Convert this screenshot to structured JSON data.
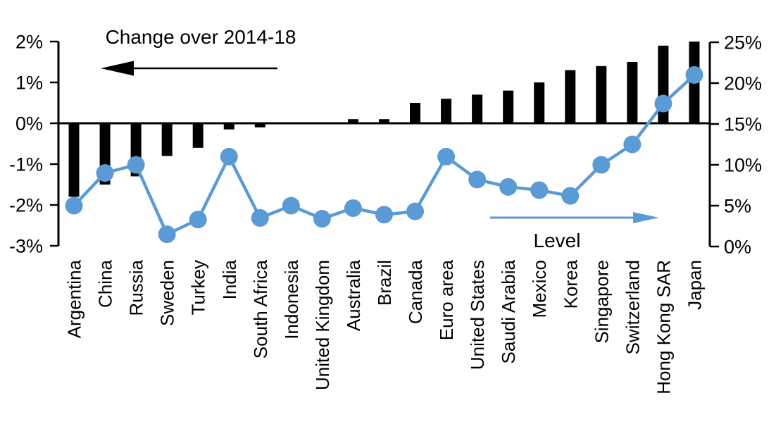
{
  "chart_data": {
    "type": "combo",
    "title": "",
    "categories": [
      "Argentina",
      "China",
      "Russia",
      "Sweden",
      "Turkey",
      "India",
      "South Africa",
      "Indonesia",
      "United Kingdom",
      "Australia",
      "Brazil",
      "Canada",
      "Euro area",
      "United States",
      "Saudi Arabia",
      "Mexico",
      "Korea",
      "Singapore",
      "Switzerland",
      "Hong Kong SAR",
      "Japan"
    ],
    "series": [
      {
        "name": "Change over 2014-18",
        "type": "bar",
        "axis": "left",
        "color": "#000000",
        "unit": "%",
        "values": [
          -1.8,
          -1.5,
          -1.3,
          -0.8,
          -0.6,
          -0.15,
          -0.1,
          0,
          0,
          0.1,
          0.1,
          0.5,
          0.6,
          0.7,
          0.8,
          1.0,
          1.3,
          1.4,
          1.5,
          1.9,
          2.0
        ]
      },
      {
        "name": "Level",
        "type": "line",
        "axis": "right",
        "color": "#5B9BD5",
        "unit": "%",
        "values": [
          5,
          9,
          10,
          1.5,
          3.3,
          11,
          3.5,
          5,
          3.4,
          4.7,
          3.9,
          4.3,
          11,
          8.2,
          7.3,
          6.9,
          6.2,
          10,
          12.5,
          17.5,
          21
        ]
      }
    ],
    "left_axis": {
      "min": -3,
      "max": 2,
      "tick_values": [
        2,
        1,
        0,
        -1,
        -2,
        -3
      ],
      "tick_labels": [
        "2%",
        "1%",
        "0%",
        "-1%",
        "-2%",
        "-3%"
      ]
    },
    "right_axis": {
      "min": 0,
      "max": 25,
      "tick_values": [
        25,
        20,
        15,
        10,
        5,
        0
      ],
      "tick_labels": [
        "25%",
        "20%",
        "15%",
        "10%",
        "5%",
        "0%"
      ]
    },
    "annotations": [
      {
        "id": "bar-series-label",
        "text": "Change over 2014-18",
        "arrow": "left",
        "text_color": "#000000",
        "arrow_color": "#000000"
      },
      {
        "id": "line-series-label",
        "text": "Level",
        "arrow": "right",
        "text_color": "#000000",
        "arrow_color": "#5B9BD5"
      }
    ],
    "grid": false,
    "legend_position": "none (in-plot labels with arrows)",
    "colors": {
      "bar": "#000000",
      "line": "#5B9BD5",
      "background": "#ffffff"
    },
    "aria_label": "Bar and line chart: Change over 2014-18 (left axis, -3% to 2%) and Level (right axis, 0% to 25%) across 21 economies"
  }
}
